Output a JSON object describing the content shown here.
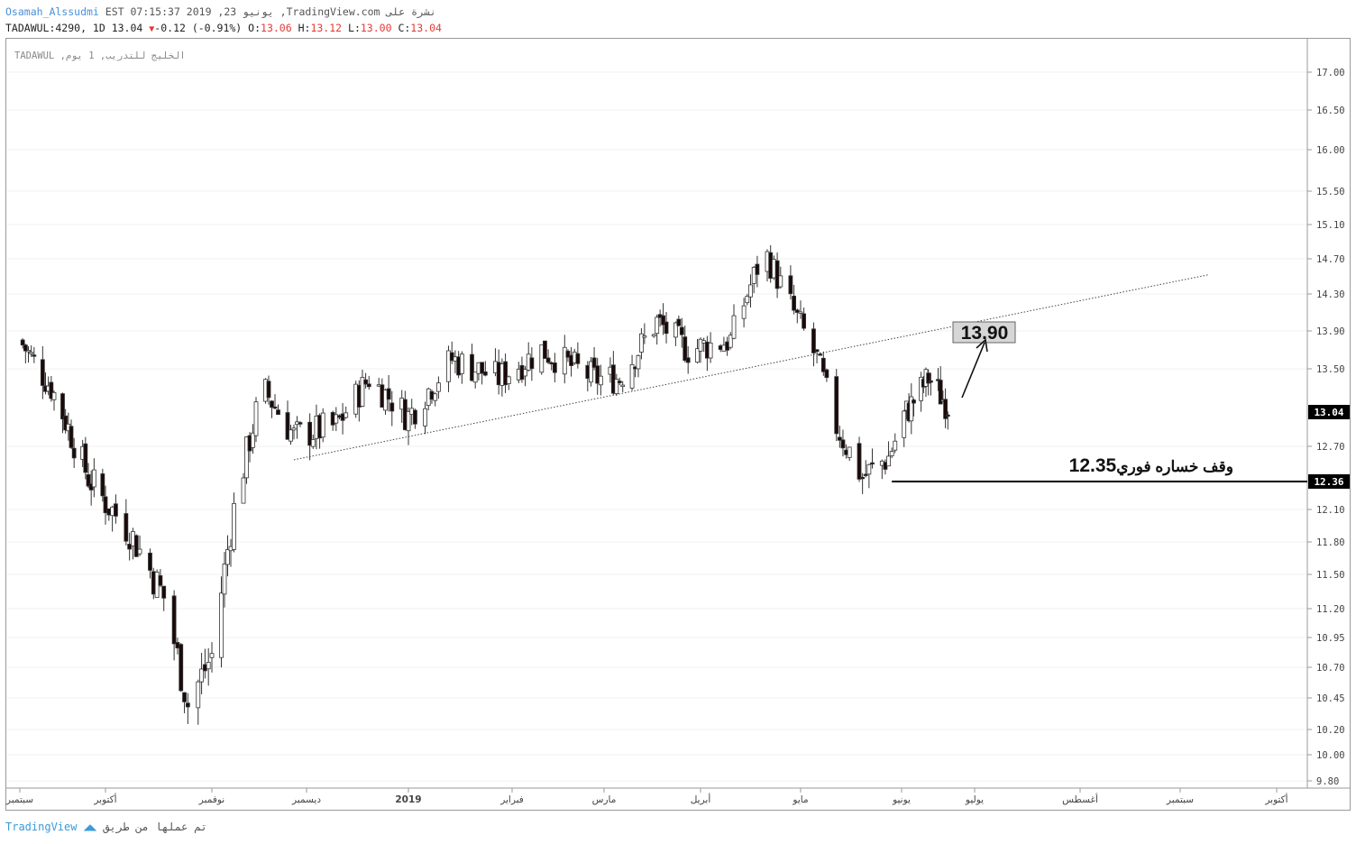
{
  "header": {
    "author": "Osamah_Alssudmi",
    "published": "EST 07:15:37 2019 ,23 يونيو ,TradingView.com نشرة على",
    "symbol_line": "TADAWUL:4290, 1D 13.04",
    "change": "-0.12 (-0.91%)",
    "o_label": "O:",
    "o_val": "13.06",
    "h_label": "H:",
    "h_val": "13.12",
    "l_label": "L:",
    "l_val": "13.00",
    "c_label": "C:",
    "c_val": "13.04"
  },
  "legend": "TADAWUL ,الخليج للتدريب, 1 يوم",
  "footer": {
    "brand": "TradingView",
    "text": "تم عملها من طريق"
  },
  "annotations": {
    "target": "13.90",
    "stop_text": "وقف خساره فوري",
    "stop_value": "12.35",
    "last_price_tag": "13.04",
    "stop_price_tag": "12.36"
  },
  "colors": {
    "up": "#ffffff",
    "down": "#1a0a0a",
    "wick": "#333333",
    "grid": "#ececec",
    "price_tag": "#000000"
  },
  "chart_data": {
    "type": "candlestick",
    "y_ticks": [
      17.0,
      16.5,
      16.0,
      15.5,
      15.1,
      14.7,
      14.3,
      13.9,
      13.5,
      13.04,
      12.7,
      12.36,
      12.1,
      11.8,
      11.5,
      11.2,
      10.95,
      10.7,
      10.45,
      10.2,
      10.0,
      9.8
    ],
    "x_labels": [
      "سبتمبر",
      "أكتوبر",
      "نوفمبر",
      "ديسمبر",
      "2019",
      "فبراير",
      "مارس",
      "أبريل",
      "مايو",
      "يونيو",
      "يوليو",
      "أغسطس",
      "سبتمبر",
      "أكتوبر"
    ],
    "trendline": {
      "from": {
        "date": "2018-11-27",
        "value": 12.57
      },
      "to": {
        "date": "2019-09-10",
        "value": 14.52
      }
    },
    "stop_line": {
      "from": {
        "date": "2019-05-29",
        "value": 12.36
      },
      "value": 12.36
    },
    "anchors": [
      [
        "2018-09-01",
        13.8
      ],
      [
        "2018-09-12",
        13.3
      ],
      [
        "2018-09-25",
        12.4
      ],
      [
        "2018-10-08",
        11.9
      ],
      [
        "2018-10-18",
        11.3
      ],
      [
        "2018-10-25",
        10.4
      ],
      [
        "2018-11-01",
        10.8
      ],
      [
        "2018-11-08",
        12.1
      ],
      [
        "2018-11-17",
        13.3
      ],
      [
        "2018-11-27",
        12.8
      ],
      [
        "2018-12-10",
        12.9
      ],
      [
        "2018-12-20",
        13.4
      ],
      [
        "2019-01-01",
        13.0
      ],
      [
        "2019-01-14",
        13.6
      ],
      [
        "2019-01-28",
        13.4
      ],
      [
        "2019-02-10",
        13.7
      ],
      [
        "2019-02-26",
        13.4
      ],
      [
        "2019-03-06",
        13.4
      ],
      [
        "2019-03-18",
        14.0
      ],
      [
        "2019-03-28",
        13.7
      ],
      [
        "2019-04-10",
        13.8
      ],
      [
        "2019-04-20",
        14.8
      ],
      [
        "2019-04-29",
        14.1
      ],
      [
        "2019-05-06",
        13.6
      ],
      [
        "2019-05-12",
        12.9
      ],
      [
        "2019-05-20",
        12.4
      ],
      [
        "2019-05-28",
        12.6
      ],
      [
        "2019-06-02",
        13.0
      ],
      [
        "2019-06-12",
        13.4
      ],
      [
        "2019-06-22",
        13.04
      ]
    ]
  }
}
